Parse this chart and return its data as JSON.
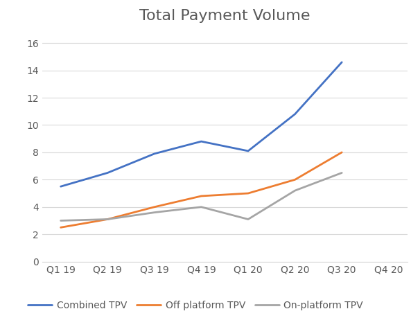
{
  "title": "Total Payment Volume",
  "categories": [
    "Q1 19",
    "Q2 19",
    "Q3 19",
    "Q4 19",
    "Q1 20",
    "Q2 20",
    "Q3 20",
    "Q4 20"
  ],
  "series": [
    {
      "name": "Combined TPV",
      "color": "#4472C4",
      "linewidth": 2.0
    },
    {
      "name": "Off platform TPV",
      "color": "#ED7D31",
      "linewidth": 2.0
    },
    {
      "name": "On-platform TPV",
      "color": "#A5A5A5",
      "linewidth": 2.0
    }
  ],
  "combined_tpv": [
    5.5,
    6.5,
    7.9,
    8.8,
    8.1,
    10.8,
    14.6,
    null
  ],
  "off_platform_tpv": [
    2.5,
    3.1,
    4.0,
    4.8,
    5.0,
    6.0,
    8.0,
    null
  ],
  "on_platform_tpv": [
    3.0,
    3.1,
    3.6,
    4.0,
    3.1,
    5.2,
    6.5,
    null
  ],
  "ylim": [
    0,
    17
  ],
  "yticks": [
    0,
    2,
    4,
    6,
    8,
    10,
    12,
    14,
    16
  ],
  "background_color": "#FFFFFF",
  "title_fontsize": 16,
  "tick_fontsize": 10,
  "legend_fontsize": 10,
  "title_color": "#595959",
  "tick_color": "#595959",
  "grid_color": "#D9D9D9",
  "spine_color": "#D9D9D9"
}
